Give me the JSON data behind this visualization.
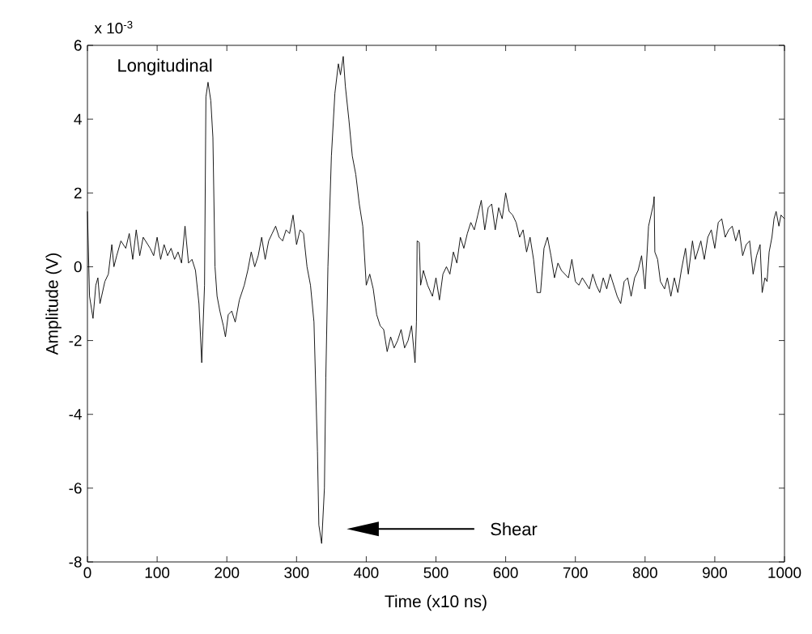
{
  "chart_data": {
    "type": "line",
    "xlabel": "Time (x10 ns)",
    "ylabel": "Amplitude (V)",
    "annotations": [
      "x 10$^{-3}$",
      "Longitudinal",
      "Shear"
    ],
    "xlim": [
      0,
      1000
    ],
    "ylim": [
      -8,
      6
    ],
    "xticks": [
      0,
      100,
      200,
      300,
      400,
      500,
      600,
      700,
      800,
      900,
      1000
    ],
    "yticks": [
      -8,
      -6,
      -4,
      -2,
      0,
      2,
      4,
      6
    ],
    "grid": false,
    "marker": "none",
    "line_style": "solid",
    "series": [
      {
        "color": "#000000",
        "x": [
          0,
          3,
          8,
          12,
          15,
          18,
          25,
          30,
          35,
          38,
          42,
          48,
          55,
          60,
          65,
          70,
          75,
          80,
          90,
          95,
          100,
          105,
          110,
          115,
          120,
          125,
          130,
          135,
          140,
          145,
          150,
          155,
          160,
          164,
          168,
          170,
          173,
          177,
          180,
          183,
          186,
          190,
          195,
          198,
          202,
          207,
          212,
          218,
          225,
          230,
          235,
          240,
          245,
          250,
          255,
          260,
          265,
          270,
          275,
          280,
          285,
          290,
          295,
          300,
          305,
          310,
          315,
          320,
          325,
          330,
          332,
          336,
          340,
          342,
          345,
          350,
          355,
          360,
          363,
          367,
          370,
          375,
          380,
          385,
          390,
          395,
          400,
          405,
          410,
          415,
          420,
          425,
          430,
          435,
          440,
          445,
          450,
          455,
          460,
          465,
          470,
          472,
          473,
          476,
          478,
          482,
          488,
          495,
          500,
          505,
          510,
          515,
          520,
          525,
          530,
          535,
          540,
          545,
          550,
          555,
          560,
          565,
          570,
          575,
          580,
          585,
          590,
          595,
          600,
          605,
          610,
          615,
          620,
          625,
          630,
          635,
          640,
          645,
          650,
          655,
          660,
          665,
          670,
          675,
          680,
          690,
          695,
          700,
          705,
          710,
          720,
          725,
          730,
          735,
          740,
          745,
          750,
          755,
          760,
          765,
          770,
          775,
          780,
          785,
          790,
          795,
          800,
          805,
          812,
          813,
          814,
          818,
          822,
          828,
          832,
          837,
          842,
          847,
          852,
          858,
          862,
          868,
          872,
          880,
          885,
          890,
          895,
          900,
          905,
          910,
          915,
          920,
          925,
          930,
          935,
          940,
          945,
          950,
          955,
          960,
          965,
          968,
          972,
          975,
          978,
          982,
          985,
          988,
          992,
          995,
          1000
        ],
        "values": [
          1.5,
          -0.8,
          -1.4,
          -0.5,
          -0.3,
          -1.0,
          -0.4,
          -0.2,
          0.6,
          0.0,
          0.3,
          0.7,
          0.5,
          0.9,
          0.2,
          1.0,
          0.3,
          0.8,
          0.5,
          0.3,
          0.8,
          0.2,
          0.6,
          0.3,
          0.5,
          0.2,
          0.4,
          0.1,
          1.1,
          0.1,
          0.2,
          -0.1,
          -1.0,
          -2.6,
          -0.5,
          4.6,
          5.0,
          4.5,
          3.5,
          0.0,
          -0.8,
          -1.2,
          -1.6,
          -1.9,
          -1.3,
          -1.2,
          -1.5,
          -0.9,
          -0.5,
          -0.1,
          0.4,
          0.0,
          0.3,
          0.8,
          0.2,
          0.7,
          0.9,
          1.1,
          0.8,
          0.7,
          1.0,
          0.9,
          1.4,
          0.6,
          1.0,
          0.9,
          0.0,
          -0.5,
          -1.5,
          -5.0,
          -7.0,
          -7.5,
          -6.0,
          -3.0,
          0.0,
          3.0,
          4.7,
          5.5,
          5.2,
          5.7,
          4.9,
          4.0,
          3.0,
          2.5,
          1.7,
          1.1,
          -0.5,
          -0.2,
          -0.6,
          -1.3,
          -1.6,
          -1.7,
          -2.3,
          -1.9,
          -2.2,
          -2.0,
          -1.7,
          -2.2,
          -2.0,
          -1.6,
          -2.6,
          -1.5,
          0.7,
          0.66,
          -0.5,
          -0.1,
          -0.5,
          -0.8,
          -0.3,
          -0.9,
          -0.2,
          0.0,
          -0.2,
          0.4,
          0.1,
          0.8,
          0.5,
          0.9,
          1.2,
          1.0,
          1.4,
          1.8,
          1.0,
          1.6,
          1.7,
          1.0,
          1.6,
          1.3,
          2.0,
          1.5,
          1.4,
          1.2,
          0.8,
          1.0,
          0.4,
          0.8,
          0.2,
          -0.7,
          -0.7,
          0.5,
          0.8,
          0.3,
          -0.3,
          0.1,
          -0.1,
          -0.3,
          0.2,
          -0.4,
          -0.5,
          -0.3,
          -0.6,
          -0.2,
          -0.5,
          -0.7,
          -0.3,
          -0.6,
          -0.2,
          -0.5,
          -0.8,
          -1.0,
          -0.4,
          -0.3,
          -0.8,
          -0.3,
          -0.1,
          0.3,
          -0.6,
          1.1,
          1.7,
          1.9,
          0.4,
          0.2,
          -0.4,
          -0.6,
          -0.3,
          -0.8,
          -0.3,
          -0.7,
          -0.1,
          0.5,
          -0.2,
          0.7,
          0.2,
          0.7,
          0.2,
          0.8,
          1.0,
          0.5,
          1.2,
          1.3,
          0.8,
          1.0,
          1.1,
          0.7,
          1.0,
          0.3,
          0.6,
          0.7,
          -0.2,
          0.3,
          0.6,
          -0.7,
          -0.3,
          -0.4,
          0.4,
          0.8,
          1.3,
          1.5,
          1.1,
          1.4,
          1.3
        ]
      }
    ]
  }
}
